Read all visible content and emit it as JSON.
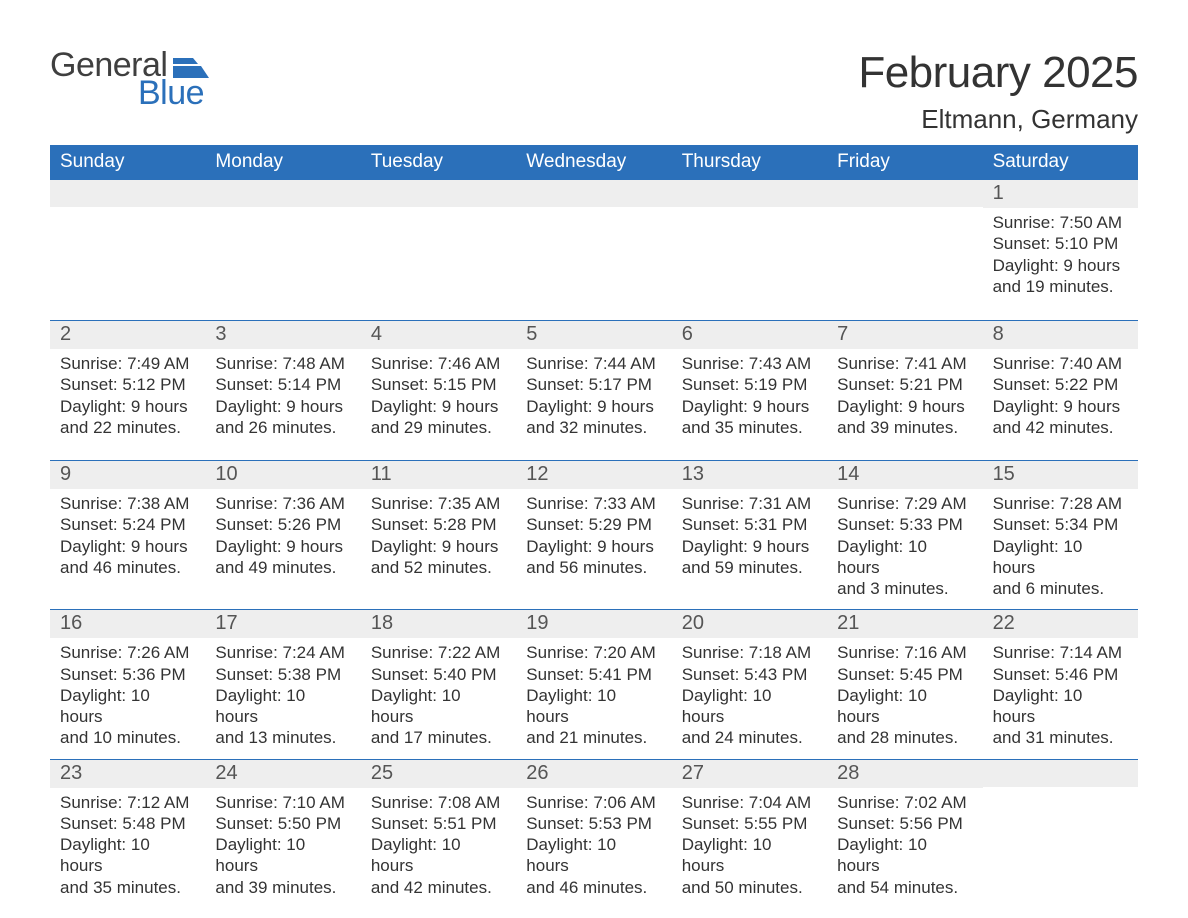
{
  "colors": {
    "accent": "#2b70ba",
    "header_text": "#ffffff",
    "daynum_bg": "#eeeeee",
    "daynum_text": "#555555",
    "body_text": "#333333",
    "page_bg": "#ffffff",
    "row_divider": "#2b70ba"
  },
  "logo": {
    "word1": "General",
    "word2": "Blue",
    "word1_color": "#3f3f3f",
    "word2_color": "#2b70ba",
    "flag_color": "#2b70ba",
    "font_size_pt": 25
  },
  "header": {
    "month_title": "February 2025",
    "location": "Eltmann, Germany",
    "month_title_fontsize_pt": 33,
    "location_fontsize_pt": 20
  },
  "calendar": {
    "weekdays": [
      "Sunday",
      "Monday",
      "Tuesday",
      "Wednesday",
      "Thursday",
      "Friday",
      "Saturday"
    ],
    "weekday_fontsize_pt": 14,
    "daynum_fontsize_pt": 15,
    "body_fontsize_pt": 13,
    "leading_blank_cells": 6,
    "trailing_blank_cells": 1,
    "days": [
      {
        "n": 1,
        "sunrise": "Sunrise: 7:50 AM",
        "sunset": "Sunset: 5:10 PM",
        "daylight_l1": "Daylight: 9 hours",
        "daylight_l2": "and 19 minutes."
      },
      {
        "n": 2,
        "sunrise": "Sunrise: 7:49 AM",
        "sunset": "Sunset: 5:12 PM",
        "daylight_l1": "Daylight: 9 hours",
        "daylight_l2": "and 22 minutes."
      },
      {
        "n": 3,
        "sunrise": "Sunrise: 7:48 AM",
        "sunset": "Sunset: 5:14 PM",
        "daylight_l1": "Daylight: 9 hours",
        "daylight_l2": "and 26 minutes."
      },
      {
        "n": 4,
        "sunrise": "Sunrise: 7:46 AM",
        "sunset": "Sunset: 5:15 PM",
        "daylight_l1": "Daylight: 9 hours",
        "daylight_l2": "and 29 minutes."
      },
      {
        "n": 5,
        "sunrise": "Sunrise: 7:44 AM",
        "sunset": "Sunset: 5:17 PM",
        "daylight_l1": "Daylight: 9 hours",
        "daylight_l2": "and 32 minutes."
      },
      {
        "n": 6,
        "sunrise": "Sunrise: 7:43 AM",
        "sunset": "Sunset: 5:19 PM",
        "daylight_l1": "Daylight: 9 hours",
        "daylight_l2": "and 35 minutes."
      },
      {
        "n": 7,
        "sunrise": "Sunrise: 7:41 AM",
        "sunset": "Sunset: 5:21 PM",
        "daylight_l1": "Daylight: 9 hours",
        "daylight_l2": "and 39 minutes."
      },
      {
        "n": 8,
        "sunrise": "Sunrise: 7:40 AM",
        "sunset": "Sunset: 5:22 PM",
        "daylight_l1": "Daylight: 9 hours",
        "daylight_l2": "and 42 minutes."
      },
      {
        "n": 9,
        "sunrise": "Sunrise: 7:38 AM",
        "sunset": "Sunset: 5:24 PM",
        "daylight_l1": "Daylight: 9 hours",
        "daylight_l2": "and 46 minutes."
      },
      {
        "n": 10,
        "sunrise": "Sunrise: 7:36 AM",
        "sunset": "Sunset: 5:26 PM",
        "daylight_l1": "Daylight: 9 hours",
        "daylight_l2": "and 49 minutes."
      },
      {
        "n": 11,
        "sunrise": "Sunrise: 7:35 AM",
        "sunset": "Sunset: 5:28 PM",
        "daylight_l1": "Daylight: 9 hours",
        "daylight_l2": "and 52 minutes."
      },
      {
        "n": 12,
        "sunrise": "Sunrise: 7:33 AM",
        "sunset": "Sunset: 5:29 PM",
        "daylight_l1": "Daylight: 9 hours",
        "daylight_l2": "and 56 minutes."
      },
      {
        "n": 13,
        "sunrise": "Sunrise: 7:31 AM",
        "sunset": "Sunset: 5:31 PM",
        "daylight_l1": "Daylight: 9 hours",
        "daylight_l2": "and 59 minutes."
      },
      {
        "n": 14,
        "sunrise": "Sunrise: 7:29 AM",
        "sunset": "Sunset: 5:33 PM",
        "daylight_l1": "Daylight: 10 hours",
        "daylight_l2": "and 3 minutes."
      },
      {
        "n": 15,
        "sunrise": "Sunrise: 7:28 AM",
        "sunset": "Sunset: 5:34 PM",
        "daylight_l1": "Daylight: 10 hours",
        "daylight_l2": "and 6 minutes."
      },
      {
        "n": 16,
        "sunrise": "Sunrise: 7:26 AM",
        "sunset": "Sunset: 5:36 PM",
        "daylight_l1": "Daylight: 10 hours",
        "daylight_l2": "and 10 minutes."
      },
      {
        "n": 17,
        "sunrise": "Sunrise: 7:24 AM",
        "sunset": "Sunset: 5:38 PM",
        "daylight_l1": "Daylight: 10 hours",
        "daylight_l2": "and 13 minutes."
      },
      {
        "n": 18,
        "sunrise": "Sunrise: 7:22 AM",
        "sunset": "Sunset: 5:40 PM",
        "daylight_l1": "Daylight: 10 hours",
        "daylight_l2": "and 17 minutes."
      },
      {
        "n": 19,
        "sunrise": "Sunrise: 7:20 AM",
        "sunset": "Sunset: 5:41 PM",
        "daylight_l1": "Daylight: 10 hours",
        "daylight_l2": "and 21 minutes."
      },
      {
        "n": 20,
        "sunrise": "Sunrise: 7:18 AM",
        "sunset": "Sunset: 5:43 PM",
        "daylight_l1": "Daylight: 10 hours",
        "daylight_l2": "and 24 minutes."
      },
      {
        "n": 21,
        "sunrise": "Sunrise: 7:16 AM",
        "sunset": "Sunset: 5:45 PM",
        "daylight_l1": "Daylight: 10 hours",
        "daylight_l2": "and 28 minutes."
      },
      {
        "n": 22,
        "sunrise": "Sunrise: 7:14 AM",
        "sunset": "Sunset: 5:46 PM",
        "daylight_l1": "Daylight: 10 hours",
        "daylight_l2": "and 31 minutes."
      },
      {
        "n": 23,
        "sunrise": "Sunrise: 7:12 AM",
        "sunset": "Sunset: 5:48 PM",
        "daylight_l1": "Daylight: 10 hours",
        "daylight_l2": "and 35 minutes."
      },
      {
        "n": 24,
        "sunrise": "Sunrise: 7:10 AM",
        "sunset": "Sunset: 5:50 PM",
        "daylight_l1": "Daylight: 10 hours",
        "daylight_l2": "and 39 minutes."
      },
      {
        "n": 25,
        "sunrise": "Sunrise: 7:08 AM",
        "sunset": "Sunset: 5:51 PM",
        "daylight_l1": "Daylight: 10 hours",
        "daylight_l2": "and 42 minutes."
      },
      {
        "n": 26,
        "sunrise": "Sunrise: 7:06 AM",
        "sunset": "Sunset: 5:53 PM",
        "daylight_l1": "Daylight: 10 hours",
        "daylight_l2": "and 46 minutes."
      },
      {
        "n": 27,
        "sunrise": "Sunrise: 7:04 AM",
        "sunset": "Sunset: 5:55 PM",
        "daylight_l1": "Daylight: 10 hours",
        "daylight_l2": "and 50 minutes."
      },
      {
        "n": 28,
        "sunrise": "Sunrise: 7:02 AM",
        "sunset": "Sunset: 5:56 PM",
        "daylight_l1": "Daylight: 10 hours",
        "daylight_l2": "and 54 minutes."
      }
    ]
  }
}
